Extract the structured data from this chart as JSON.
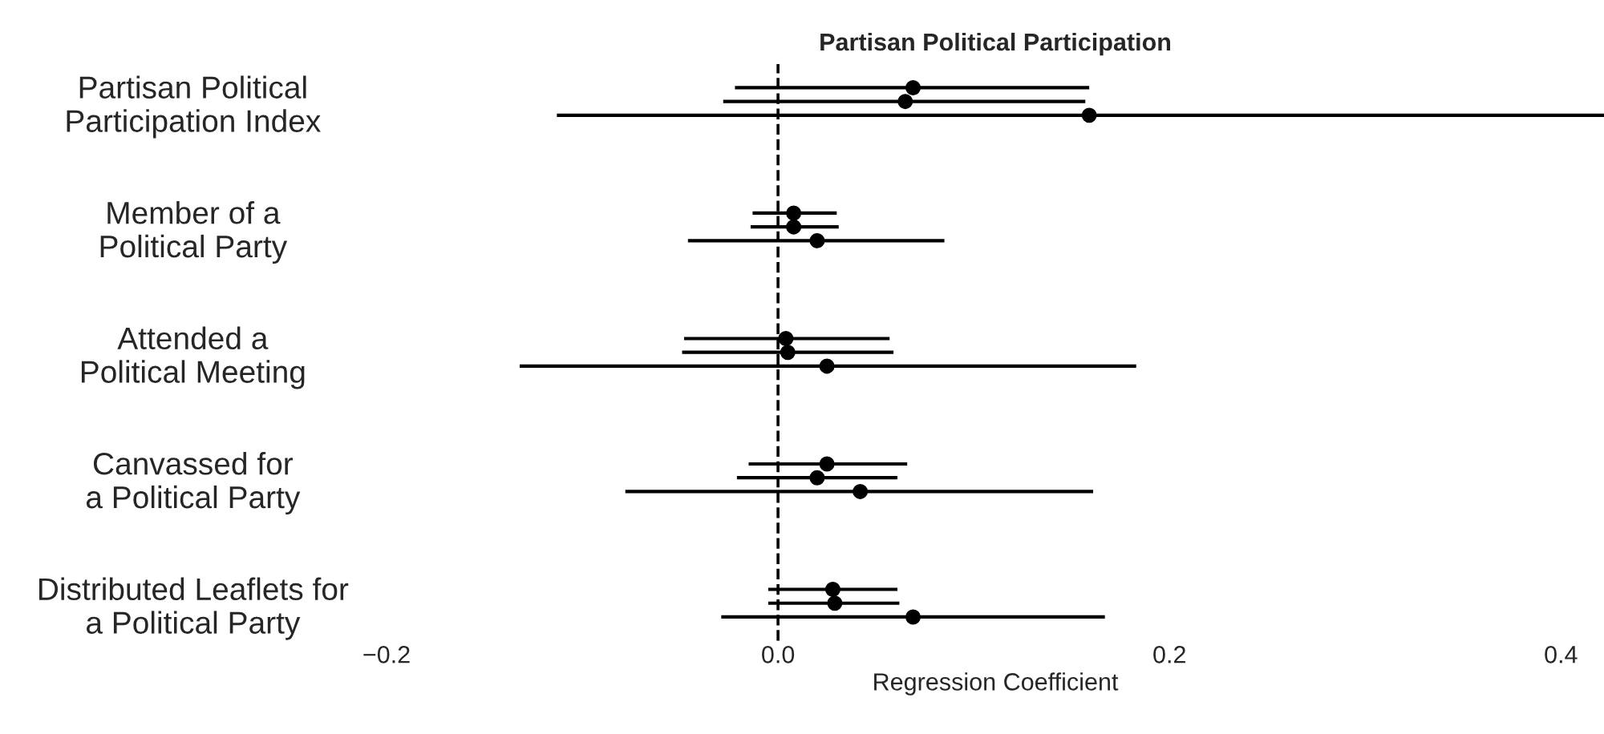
{
  "chart_data": {
    "type": "scatter",
    "orientation": "horizontal",
    "title": "Partisan Political Participation",
    "xlabel": "Regression Coefficient",
    "categories": [
      "Partisan Political\nParticipation Index",
      "Member of a\nPolitical Party",
      "Attended a\nPolitical Meeting",
      "Canvassed for\na Political Party",
      "Distributed Leaflets for\na Political Party"
    ],
    "series": [
      {
        "color": "#000000",
        "values": [
          0.069,
          0.008,
          0.004,
          0.025,
          0.028
        ],
        "errors": [
          [
            -0.022,
            0.159
          ],
          [
            -0.013,
            0.03
          ],
          [
            -0.048,
            0.057
          ],
          [
            -0.015,
            0.066
          ],
          [
            -0.005,
            0.061
          ]
        ]
      },
      {
        "color": "#000000",
        "values": [
          0.065,
          0.008,
          0.005,
          0.02,
          0.029
        ],
        "errors": [
          [
            -0.028,
            0.157
          ],
          [
            -0.014,
            0.031
          ],
          [
            -0.049,
            0.059
          ],
          [
            -0.021,
            0.061
          ],
          [
            -0.005,
            0.062
          ]
        ]
      },
      {
        "color": "#000000",
        "values": [
          0.159,
          0.02,
          0.025,
          0.042,
          0.069
        ],
        "errors": [
          [
            -0.113,
            0.422
          ],
          [
            -0.046,
            0.085
          ],
          [
            -0.132,
            0.183
          ],
          [
            -0.078,
            0.161
          ],
          [
            -0.029,
            0.167
          ]
        ]
      }
    ],
    "xlim": [
      -0.2,
      0.422
    ],
    "xticks": [
      {
        "value": -0.2,
        "label": "−0.2"
      },
      {
        "value": 0,
        "label": "0.0"
      },
      {
        "value": 0.2,
        "label": "0.2"
      },
      {
        "value": 0.4,
        "label": "0.4"
      }
    ],
    "ref_lines": [
      {
        "axis": "x",
        "value": 0,
        "color": "#000000",
        "line_style": "dashed"
      }
    ],
    "marker": "circle",
    "grid": false,
    "legend": false
  }
}
